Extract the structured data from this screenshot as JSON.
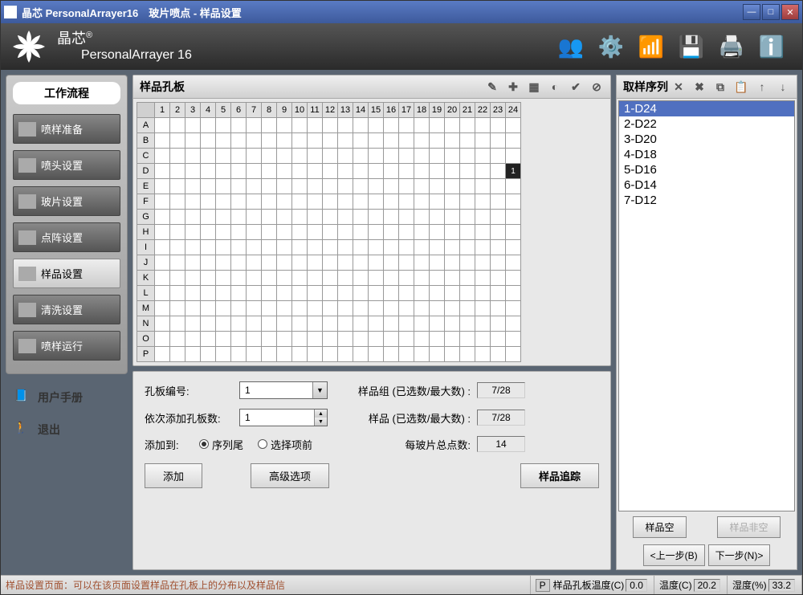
{
  "window": {
    "title": "晶芯 PersonalArrayer16　玻片喷点 - 样品设置"
  },
  "app": {
    "brand": "晶芯",
    "registered": "®",
    "product": "PersonalArrayer 16"
  },
  "toolbar_icons": [
    "users",
    "gear",
    "scan",
    "save",
    "printer",
    "info"
  ],
  "sidebar": {
    "header": "工作流程",
    "items": [
      {
        "label": "喷样准备",
        "id": "prep"
      },
      {
        "label": "喷头设置",
        "id": "head"
      },
      {
        "label": "玻片设置",
        "id": "slide"
      },
      {
        "label": "点阵设置",
        "id": "array"
      },
      {
        "label": "样品设置",
        "id": "sample",
        "active": true
      },
      {
        "label": "清洗设置",
        "id": "wash"
      },
      {
        "label": "喷样运行",
        "id": "run"
      }
    ],
    "manual": "用户手册",
    "exit": "退出"
  },
  "plate": {
    "title": "样品孔板",
    "cols": [
      "1",
      "2",
      "3",
      "4",
      "5",
      "6",
      "7",
      "8",
      "9",
      "10",
      "11",
      "12",
      "13",
      "14",
      "15",
      "16",
      "17",
      "18",
      "19",
      "20",
      "21",
      "22",
      "23",
      "24"
    ],
    "rows": [
      "A",
      "B",
      "C",
      "D",
      "E",
      "F",
      "G",
      "H",
      "I",
      "J",
      "K",
      "L",
      "M",
      "N",
      "O",
      "P"
    ],
    "filled": {
      "row": "D",
      "col": 24,
      "label": "1"
    }
  },
  "controls": {
    "plate_no_label": "孔板编号:",
    "plate_no_value": "1",
    "group_label": "样品组 (已选数/最大数) :",
    "group_value": "7/28",
    "add_count_label": "依次添加孔板数:",
    "add_count_value": "1",
    "sample_label": "样品 (已选数/最大数) :",
    "sample_value": "7/28",
    "add_to_label": "添加到:",
    "radio_tail": "序列尾",
    "radio_before": "选择项前",
    "radio_selected": "tail",
    "per_slide_label": "每玻片总点数:",
    "per_slide_value": "14",
    "btn_add": "添加",
    "btn_advanced": "高级选项",
    "btn_track": "样品追踪"
  },
  "sequence": {
    "title": "取样序列",
    "items": [
      "1-D24",
      "2-D22",
      "3-D20",
      "4-D18",
      "5-D16",
      "6-D14",
      "7-D12"
    ],
    "selected": 0,
    "btn_empty": "样品空",
    "btn_notempty": "样品非空",
    "btn_prev": "<上一步(B)",
    "btn_next": "下一步(N)>"
  },
  "status": {
    "main": "样品设置页面：可以在该页面设置样品在孔板上的分布以及样品信",
    "p": "P",
    "plate_temp_label": "样品孔板温度(C)",
    "plate_temp_value": "0.0",
    "temp_label": "温度(C)",
    "temp_value": "20.2",
    "humid_label": "湿度(%)",
    "humid_value": "33.2"
  }
}
